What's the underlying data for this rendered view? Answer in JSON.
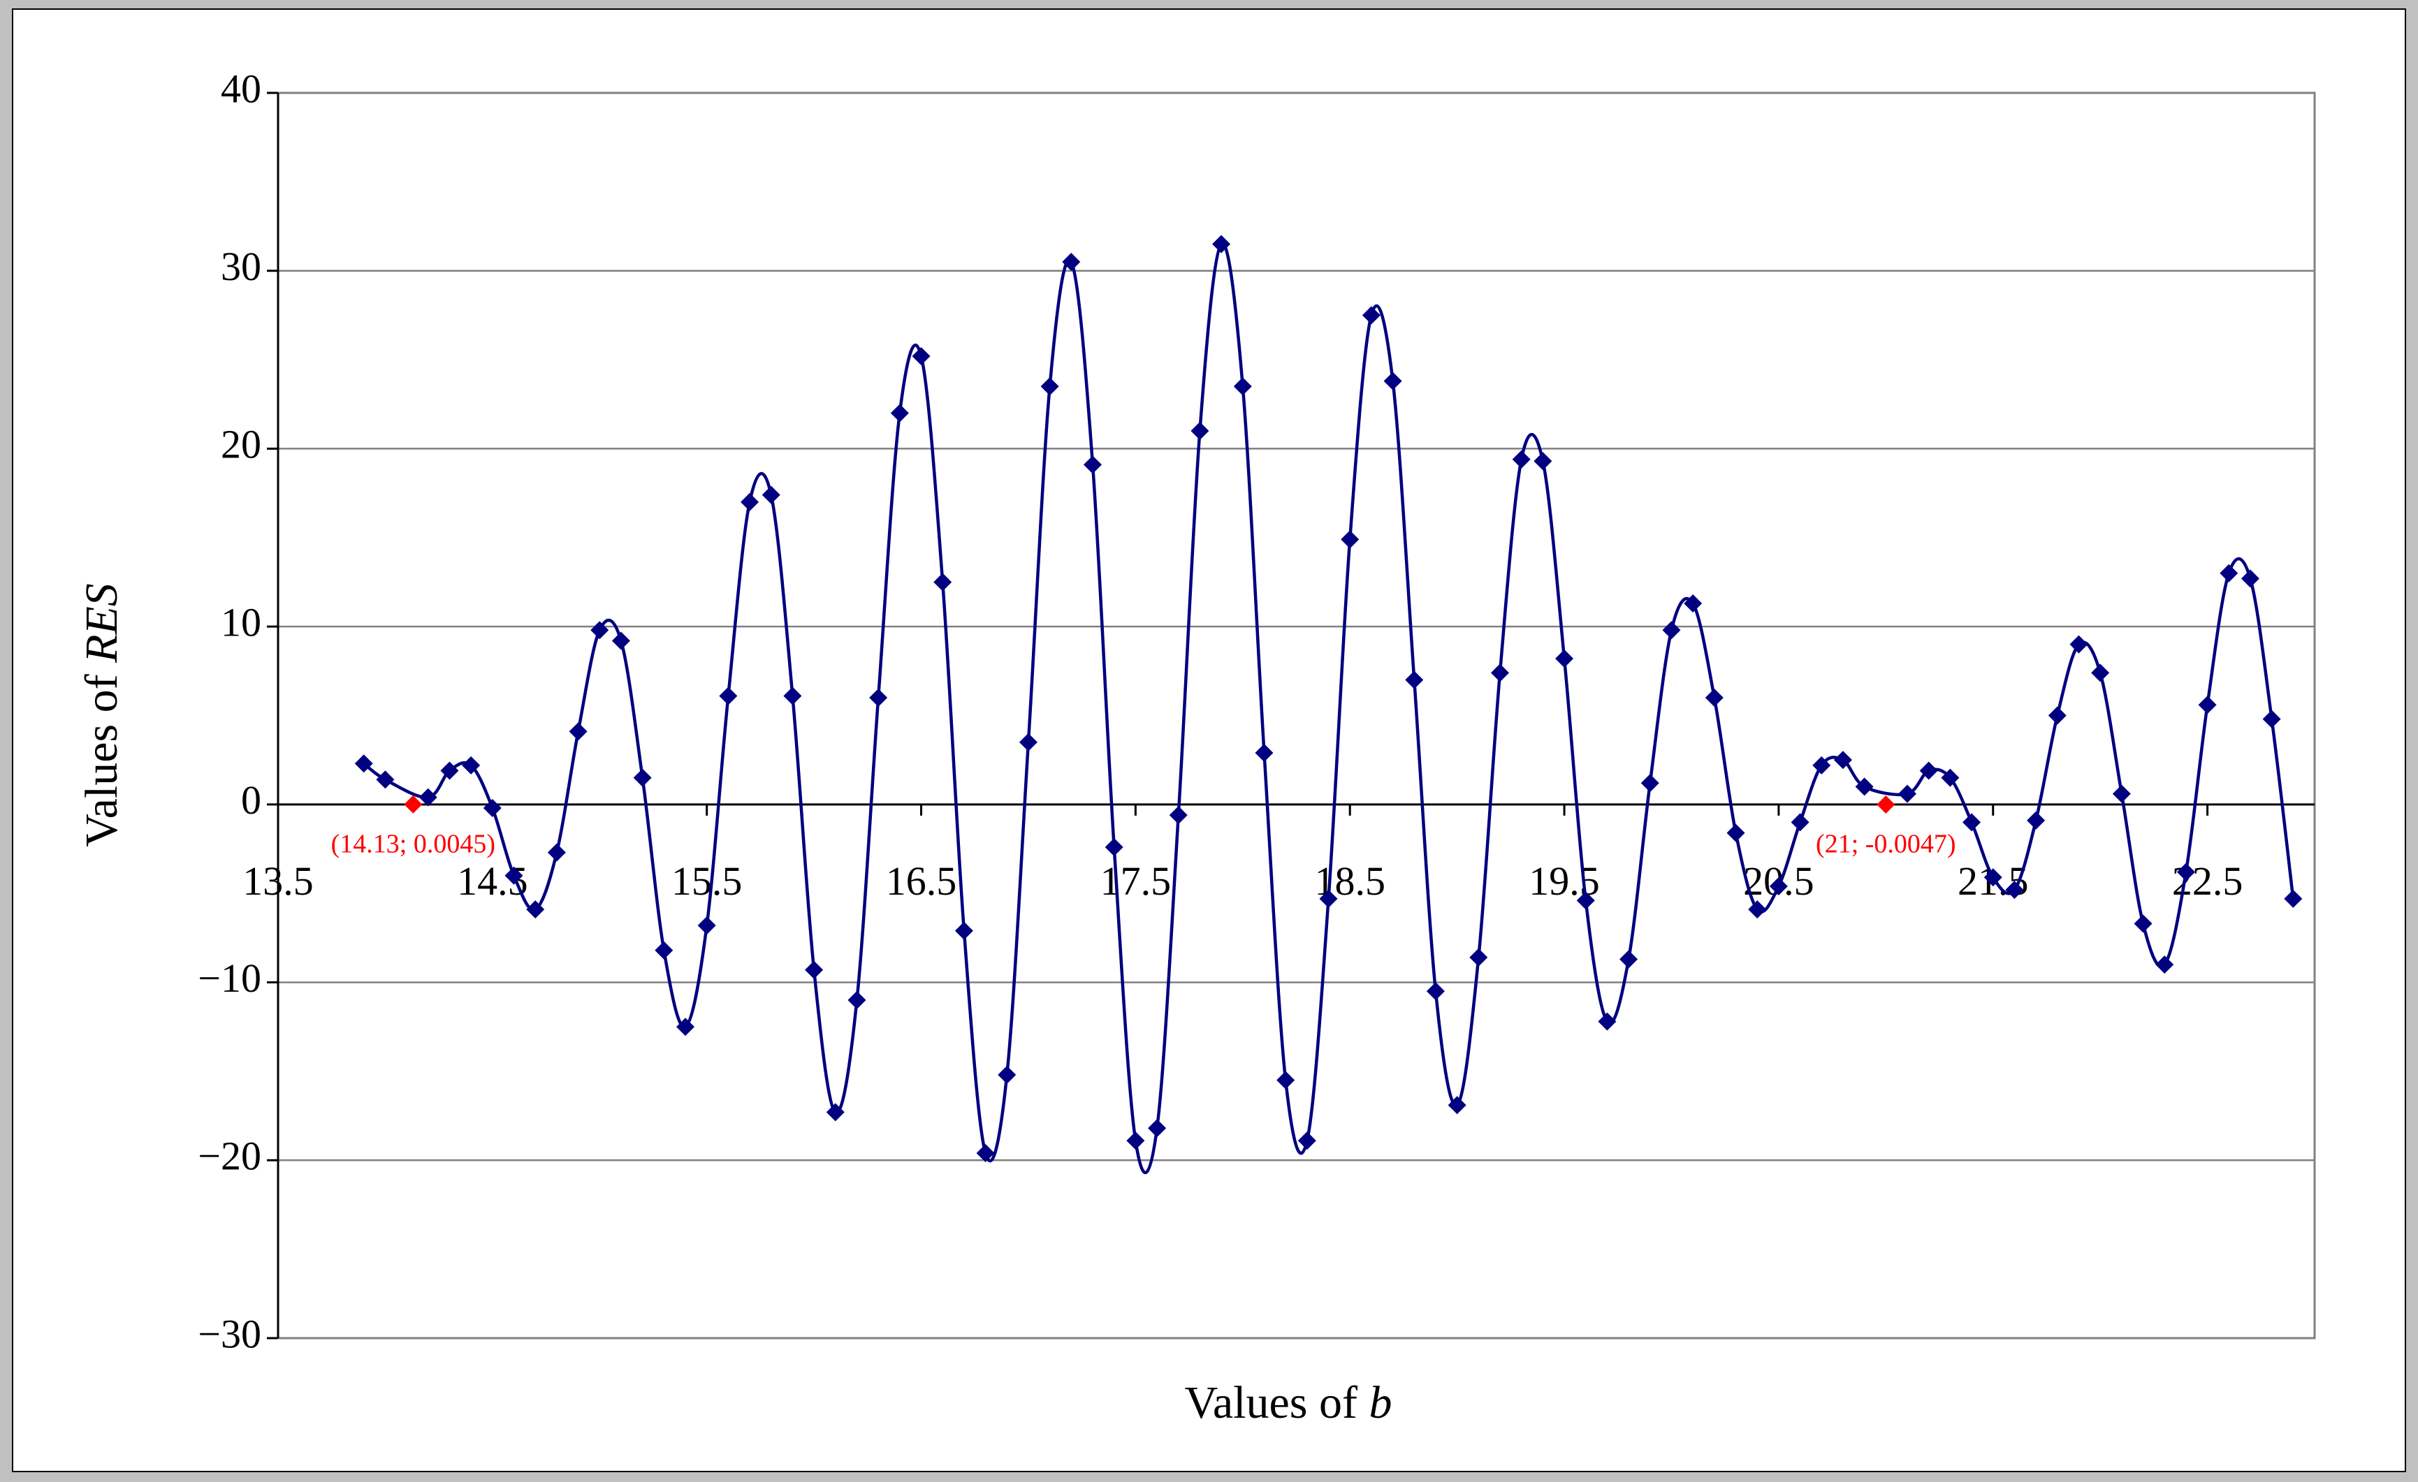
{
  "chart_data": {
    "type": "line",
    "xlabel": [
      "Values of ",
      "b"
    ],
    "ylabel": [
      "Values of ",
      "RES"
    ],
    "xlim": [
      13.5,
      23.0
    ],
    "xticks": [
      13.5,
      14.5,
      15.5,
      16.5,
      17.5,
      18.5,
      19.5,
      20.5,
      21.5,
      22.5
    ],
    "ylim": [
      -30,
      40
    ],
    "yticks": [
      {
        "value": -30,
        "label": "−30"
      },
      {
        "value": -20,
        "label": "−20"
      },
      {
        "value": -10,
        "label": "−10"
      },
      0,
      10,
      20,
      30,
      40
    ],
    "grid": true,
    "series": [
      {
        "color": "#000080",
        "x": [
          13.9,
          14.0,
          14.2,
          14.3,
          14.4,
          14.5,
          14.6,
          14.7,
          14.8,
          14.9,
          15.0,
          15.1,
          15.2,
          15.3,
          15.4,
          15.5,
          15.6,
          15.7,
          15.8,
          15.9,
          16.0,
          16.1,
          16.2,
          16.3,
          16.4,
          16.5,
          16.6,
          16.7,
          16.8,
          16.9,
          17.0,
          17.1,
          17.2,
          17.3,
          17.4,
          17.5,
          17.6,
          17.7,
          17.8,
          17.9,
          18.0,
          18.1,
          18.2,
          18.3,
          18.4,
          18.5,
          18.6,
          18.7,
          18.8,
          18.9,
          19.0,
          19.1,
          19.2,
          19.3,
          19.4,
          19.5,
          19.6,
          19.7,
          19.8,
          19.9,
          20.0,
          20.1,
          20.2,
          20.3,
          20.4,
          20.5,
          20.6,
          20.7,
          20.8,
          20.9,
          21.1,
          21.2,
          21.3,
          21.4,
          21.5,
          21.6,
          21.7,
          21.8,
          21.9,
          22.0,
          22.1,
          22.2,
          22.3,
          22.4,
          22.5,
          22.6,
          22.7,
          22.8,
          22.9
        ],
        "values": [
          2.3,
          1.4,
          0.4,
          1.9,
          2.2,
          -0.2,
          -4.0,
          -5.9,
          -2.7,
          4.1,
          9.8,
          9.2,
          1.5,
          -8.2,
          -12.5,
          -6.8,
          6.1,
          17.0,
          17.4,
          6.1,
          -9.3,
          -17.3,
          -11.0,
          6.0,
          22.0,
          25.2,
          12.5,
          -7.1,
          -19.6,
          -15.2,
          3.5,
          23.5,
          30.5,
          19.1,
          -2.4,
          -18.9,
          -18.2,
          -0.6,
          21.0,
          31.5,
          23.5,
          2.9,
          -15.5,
          -18.9,
          -5.3,
          14.9,
          27.5,
          23.8,
          7.0,
          -10.5,
          -16.9,
          -8.6,
          7.4,
          19.4,
          19.3,
          8.2,
          -5.4,
          -12.2,
          -8.7,
          1.2,
          9.8,
          11.3,
          6.0,
          -1.6,
          -5.9,
          -4.6,
          -1.0,
          2.2,
          2.5,
          1.0,
          0.6,
          1.9,
          1.5,
          -1.0,
          -4.1,
          -4.8,
          -0.9,
          5.0,
          9.0,
          7.4,
          0.6,
          -6.7,
          -9.0,
          -3.8,
          5.6,
          13.0,
          12.7,
          4.8,
          -5.3
        ]
      },
      {
        "color": "#ff0000",
        "x": [
          14.13,
          21
        ],
        "values": [
          0.0045,
          -0.0047
        ],
        "value_labels": [
          "(14.13; 0.0045)",
          "(21; -0.0047)"
        ]
      }
    ]
  }
}
